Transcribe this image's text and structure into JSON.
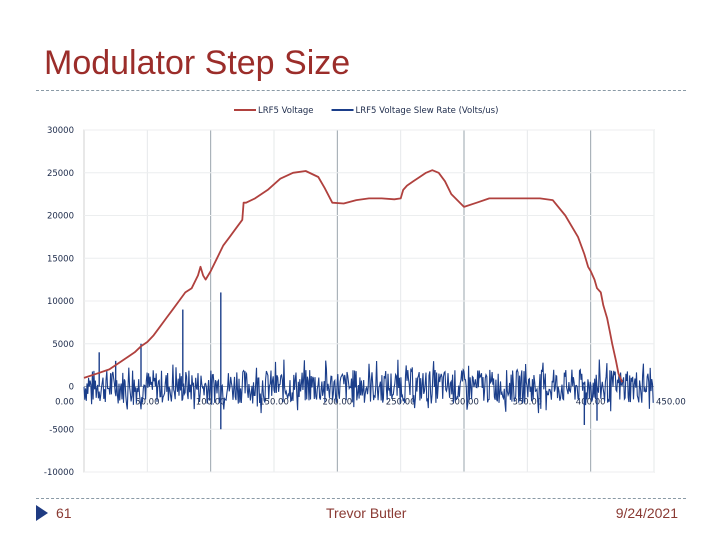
{
  "slide": {
    "title": "Modulator Step Size",
    "number": "61",
    "author": "Trevor Butler",
    "date": "9/24/2021"
  },
  "chart_data": {
    "type": "line",
    "title": "",
    "xlabel": "",
    "ylabel": "",
    "xlim": [
      0,
      450
    ],
    "ylim": [
      -10000,
      30000
    ],
    "x_ticks": [
      0,
      50,
      100,
      150,
      200,
      250,
      300,
      350,
      400,
      450
    ],
    "x_tick_labels": [
      "0.00",
      "50.00",
      "100.00",
      "150.00",
      "200.00",
      "250.00",
      "300.00",
      "350.00",
      "400.00",
      "450.00"
    ],
    "y_ticks": [
      30000,
      25000,
      20000,
      15000,
      10000,
      5000,
      0,
      -5000,
      -10000
    ],
    "y_tick_labels": [
      "30000",
      "25000",
      "20000",
      "15000",
      "10000",
      "5000",
      "0",
      "-5000",
      "-10000"
    ],
    "grid": true,
    "legend_position": "top",
    "series": [
      {
        "name": "LRF5 Voltage",
        "color": "#b0413e",
        "x": [
          0,
          10,
          20,
          30,
          35,
          40,
          45,
          50,
          55,
          60,
          65,
          70,
          75,
          80,
          85,
          90,
          92,
          94,
          96,
          100,
          105,
          110,
          115,
          120,
          125,
          126,
          128,
          135,
          145,
          155,
          165,
          175,
          185,
          190,
          196,
          205,
          215,
          225,
          235,
          245,
          250,
          252,
          255,
          260,
          265,
          270,
          275,
          280,
          285,
          290,
          300,
          310,
          320,
          330,
          340,
          350,
          360,
          370,
          380,
          390,
          395,
          398,
          400,
          403,
          405,
          408,
          410,
          413,
          415,
          417,
          420,
          422,
          425
        ],
        "y": [
          1000,
          1500,
          2000,
          3000,
          3500,
          4000,
          4700,
          5200,
          6000,
          7000,
          8000,
          9000,
          10000,
          11000,
          11500,
          13000,
          14000,
          13000,
          12500,
          13500,
          15000,
          16500,
          17500,
          18500,
          19500,
          21500,
          21500,
          22000,
          23000,
          24300,
          25000,
          25200,
          24500,
          23200,
          21500,
          21400,
          21800,
          22000,
          22000,
          21900,
          22000,
          23000,
          23500,
          24000,
          24500,
          25000,
          25300,
          25000,
          24000,
          22500,
          21000,
          21500,
          22000,
          22000,
          22000,
          22000,
          22000,
          21800,
          20000,
          17500,
          15500,
          14000,
          13500,
          12500,
          11500,
          11000,
          9500,
          8000,
          6500,
          5000,
          3000,
          1500,
          500
        ]
      },
      {
        "name": "LRF5 Voltage Slew Rate (Volts/us)",
        "color": "#1b3e8a",
        "noise_range": [
          -2000,
          2000
        ],
        "x_range": [
          0,
          450
        ],
        "spikes": [
          {
            "x": 12,
            "y": 4000
          },
          {
            "x": 25,
            "y": 3000
          },
          {
            "x": 45,
            "y": 5000
          },
          {
            "x": 78,
            "y": 9000
          },
          {
            "x": 108,
            "y": 11000
          },
          {
            "x": 108,
            "y": -5000
          },
          {
            "x": 395,
            "y": -4500
          },
          {
            "x": 405,
            "y": -4000
          }
        ]
      }
    ]
  }
}
